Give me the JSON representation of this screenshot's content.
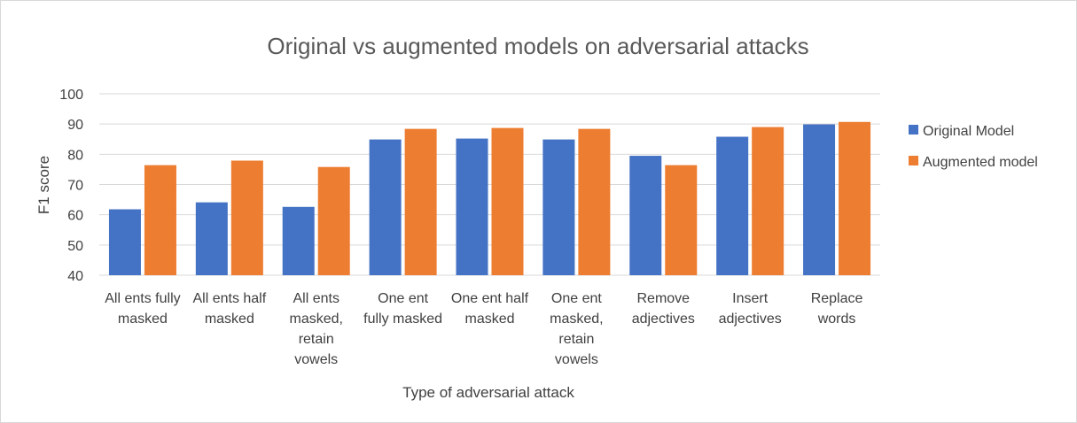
{
  "chart_data": {
    "type": "bar",
    "title": "Original vs augmented models on adversarial attacks",
    "xlabel": "Type of adversarial attack",
    "ylabel": "F1 score",
    "ylim": [
      40,
      100
    ],
    "yticks": [
      "40",
      "50",
      "60",
      "70",
      "80",
      "90",
      "100"
    ],
    "grid": true,
    "legend_position": "right",
    "categories": [
      [
        "All ents fully",
        "masked"
      ],
      [
        "All ents half",
        "masked"
      ],
      [
        "All ents",
        "masked,",
        "retain",
        "vowels"
      ],
      [
        "One ent",
        "fully masked"
      ],
      [
        "One ent half",
        "masked"
      ],
      [
        "One ent",
        "masked,",
        "retain",
        "vowels"
      ],
      [
        "Remove",
        "adjectives"
      ],
      [
        "Insert",
        "adjectives"
      ],
      [
        "Replace",
        "words"
      ]
    ],
    "series": [
      {
        "name": "Original Model",
        "color": "#4472c4",
        "values": [
          61.8,
          64.1,
          62.6,
          84.9,
          85.2,
          84.9,
          79.5,
          85.8,
          89.9
        ]
      },
      {
        "name": "Augmented model",
        "color": "#ed7d31",
        "values": [
          76.4,
          77.9,
          75.8,
          88.4,
          88.7,
          88.4,
          76.4,
          89.0,
          90.7
        ]
      }
    ]
  }
}
